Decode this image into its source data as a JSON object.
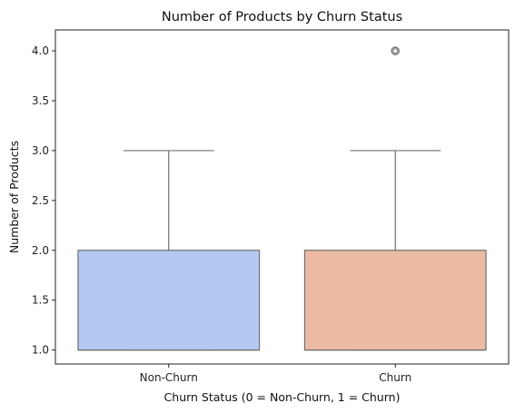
{
  "chart_data": {
    "type": "box",
    "title": "Number of Products by Churn Status",
    "xlabel": "Churn Status (0 = Non-Churn, 1 = Churn)",
    "ylabel": "Number of Products",
    "ylim": [
      0.86,
      4.21
    ],
    "yticks": [
      "1.0",
      "1.5",
      "2.0",
      "2.5",
      "3.0",
      "3.5",
      "4.0"
    ],
    "ytick_values": [
      1.0,
      1.5,
      2.0,
      2.5,
      3.0,
      3.5,
      4.0
    ],
    "categories": [
      "Non-Churn",
      "Churn"
    ],
    "boxes": [
      {
        "category": "Non-Churn",
        "whisker_low": 1.0,
        "q1": 1.0,
        "median": 1.0,
        "q3": 2.0,
        "whisker_high": 3.0,
        "outliers": [],
        "color": "#b3c9f3"
      },
      {
        "category": "Churn",
        "whisker_low": 1.0,
        "q1": 1.0,
        "median": 1.0,
        "q3": 2.0,
        "whisker_high": 3.0,
        "outliers": [
          4.0
        ],
        "color": "#ebbba4"
      }
    ],
    "grid": false,
    "legend": "none"
  }
}
